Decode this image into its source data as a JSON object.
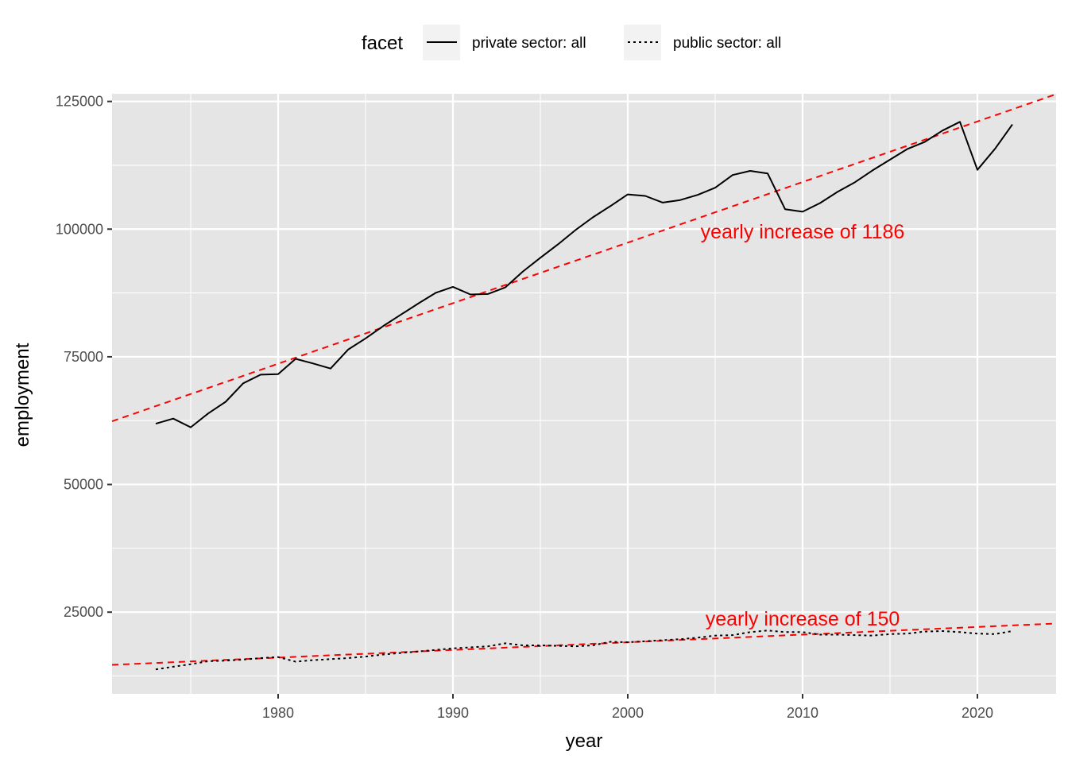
{
  "chart_data": {
    "type": "line",
    "xlabel": "year",
    "ylabel": "employment",
    "xlim": [
      1970.5,
      2024.5
    ],
    "ylim": [
      9000,
      126500
    ],
    "x_ticks": [
      1980,
      1990,
      2000,
      2010,
      2020
    ],
    "x_tick_labels": [
      "1980",
      "1990",
      "2000",
      "2010",
      "2020"
    ],
    "y_ticks": [
      25000,
      50000,
      75000,
      100000,
      125000
    ],
    "y_tick_labels": [
      "25000",
      "50000",
      "75000",
      "100000",
      "125000"
    ],
    "grid": true,
    "legend": {
      "title": "facet",
      "position": "top",
      "entries": [
        {
          "label": "private sector: all",
          "linetype": "solid"
        },
        {
          "label": "public sector: all",
          "linetype": "dotted"
        }
      ]
    },
    "x": [
      1973,
      1974,
      1975,
      1976,
      1977,
      1978,
      1979,
      1980,
      1981,
      1982,
      1983,
      1984,
      1985,
      1986,
      1987,
      1988,
      1989,
      1990,
      1991,
      1992,
      1993,
      1994,
      1995,
      1996,
      1997,
      1998,
      1999,
      2000,
      2001,
      2002,
      2003,
      2004,
      2005,
      2006,
      2007,
      2008,
      2009,
      2010,
      2011,
      2012,
      2013,
      2014,
      2015,
      2016,
      2017,
      2018,
      2019,
      2020,
      2021,
      2022
    ],
    "series": [
      {
        "name": "private sector: all",
        "linetype": "solid",
        "color": "#000000",
        "values": [
          61900,
          62900,
          61200,
          63900,
          66200,
          69800,
          71500,
          71600,
          74600,
          73700,
          72700,
          76400,
          78600,
          81000,
          83200,
          85400,
          87500,
          88700,
          87200,
          87300,
          88600,
          91700,
          94400,
          97000,
          99800,
          102300,
          104500,
          106800,
          106500,
          105200,
          105700,
          106700,
          108100,
          110600,
          111400,
          110900,
          103900,
          103400,
          105100,
          107300,
          109200,
          111500,
          113600,
          115700,
          117100,
          119300,
          121000,
          111600,
          115700,
          120500
        ]
      },
      {
        "name": "public sector: all",
        "linetype": "dotted",
        "color": "#000000",
        "values": [
          13800,
          14300,
          14800,
          15400,
          15500,
          15700,
          16000,
          16200,
          15300,
          15600,
          15800,
          16000,
          16300,
          16700,
          17000,
          17300,
          17600,
          17900,
          18100,
          18300,
          18900,
          18500,
          18500,
          18400,
          18300,
          18500,
          19200,
          19100,
          19300,
          19500,
          19700,
          20000,
          20400,
          20500,
          21100,
          21400,
          21100,
          21100,
          20600,
          20600,
          20500,
          20400,
          20700,
          20800,
          21200,
          21300,
          21100,
          20800,
          20700,
          21300
        ]
      }
    ],
    "trend_lines": [
      {
        "slope": 1186,
        "anchor_x": 1990,
        "anchor_y": 85500,
        "color": "#ff0000",
        "linetype": "dashed"
      },
      {
        "slope": 150,
        "anchor_x": 1990,
        "anchor_y": 17600,
        "color": "#ff0000",
        "linetype": "dashed"
      }
    ],
    "annotations": [
      {
        "text": "yearly increase of 1186",
        "x": 2010,
        "y": 99600,
        "color": "#ff0000"
      },
      {
        "text": "yearly increase of 150",
        "x": 2010,
        "y": 23800,
        "color": "#ff0000"
      }
    ],
    "colors": {
      "panel_background": "#e5e5e5",
      "grid_major": "#ffffff",
      "trend": "#ff0000",
      "series": "#000000"
    }
  }
}
